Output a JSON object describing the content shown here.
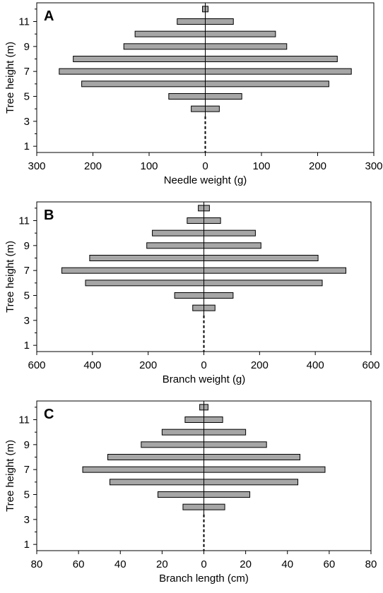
{
  "chart_data": [
    {
      "panel_label": "A",
      "type": "bar",
      "orientation": "horizontal-mirrored",
      "ylabel": "Tree height (m)",
      "xlabel": "Needle weight (g)",
      "xlim": [
        -300,
        300
      ],
      "xticks": [
        -300,
        -200,
        -100,
        0,
        100,
        200,
        300
      ],
      "xtick_labels": [
        "300",
        "200",
        "100",
        "0",
        "100",
        "200",
        "300"
      ],
      "ylim": [
        0.5,
        12.5
      ],
      "yticks": [
        1,
        3,
        5,
        7,
        9,
        11
      ],
      "ytick_labels": [
        "1",
        "3",
        "5",
        "7",
        "9",
        "11"
      ],
      "heights": [
        1,
        2,
        3,
        4,
        5,
        6,
        7,
        8,
        9,
        10,
        11,
        12
      ],
      "values": [
        0,
        0,
        0,
        25,
        65,
        220,
        260,
        235,
        145,
        125,
        50,
        5
      ],
      "bar_color": "#a6a6a6"
    },
    {
      "panel_label": "B",
      "type": "bar",
      "orientation": "horizontal-mirrored",
      "ylabel": "Tree height (m)",
      "xlabel": "Branch weight (g)",
      "xlim": [
        -600,
        600
      ],
      "xticks": [
        -600,
        -400,
        -200,
        0,
        200,
        400,
        600
      ],
      "xtick_labels": [
        "600",
        "400",
        "200",
        "0",
        "200",
        "400",
        "600"
      ],
      "ylim": [
        0.5,
        12.5
      ],
      "yticks": [
        1,
        3,
        5,
        7,
        9,
        11
      ],
      "ytick_labels": [
        "1",
        "3",
        "5",
        "7",
        "9",
        "11"
      ],
      "heights": [
        1,
        2,
        3,
        4,
        5,
        6,
        7,
        8,
        9,
        10,
        11,
        12
      ],
      "values": [
        0,
        0,
        0,
        40,
        105,
        425,
        510,
        410,
        205,
        185,
        60,
        20
      ],
      "bar_color": "#a6a6a6"
    },
    {
      "panel_label": "C",
      "type": "bar",
      "orientation": "horizontal-mirrored",
      "ylabel": "Tree height (m)",
      "xlabel": "Branch length (cm)",
      "xlim": [
        -80,
        80
      ],
      "xticks": [
        -80,
        -60,
        -40,
        -20,
        0,
        20,
        40,
        60,
        80
      ],
      "xtick_labels": [
        "80",
        "60",
        "40",
        "20",
        "0",
        "20",
        "40",
        "60",
        "80"
      ],
      "ylim": [
        0.5,
        12.5
      ],
      "yticks": [
        1,
        3,
        5,
        7,
        9,
        11
      ],
      "ytick_labels": [
        "1",
        "3",
        "5",
        "7",
        "9",
        "11"
      ],
      "heights": [
        1,
        2,
        3,
        4,
        5,
        6,
        7,
        8,
        9,
        10,
        11,
        12
      ],
      "values": [
        0,
        0,
        0,
        10,
        22,
        45,
        58,
        46,
        30,
        20,
        9,
        2
      ],
      "bar_color": "#a6a6a6"
    }
  ]
}
